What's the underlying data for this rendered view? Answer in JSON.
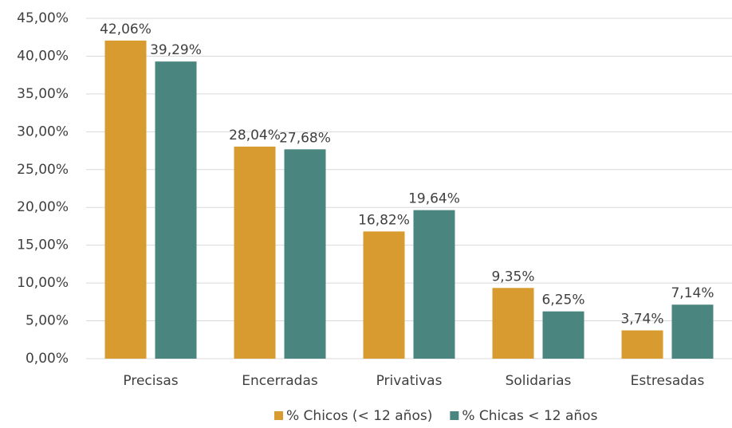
{
  "chart_data": {
    "type": "bar",
    "categories": [
      "Precisas",
      "Encerradas",
      "Privativas",
      "Solidarias",
      "Estresadas"
    ],
    "series": [
      {
        "name": "% Chicos (< 12 años)",
        "color": "#d89b2f",
        "values": [
          42.06,
          28.04,
          16.82,
          9.35,
          3.74
        ],
        "value_labels": [
          "42,06%",
          "28,04%",
          "16,82%",
          "9,35%",
          "3,74%"
        ]
      },
      {
        "name": "% Chicas < 12 años",
        "color": "#4b8580",
        "values": [
          39.29,
          27.68,
          19.64,
          6.25,
          7.14
        ],
        "value_labels": [
          "39,29%",
          "27,68%",
          "19,64%",
          "6,25%",
          "7,14%"
        ]
      }
    ],
    "ylim": [
      0,
      45
    ],
    "yticks": [
      {
        "value": 0,
        "label": "0,00%"
      },
      {
        "value": 5,
        "label": "5,00%"
      },
      {
        "value": 10,
        "label": "10,00%"
      },
      {
        "value": 15,
        "label": "15,00%"
      },
      {
        "value": 20,
        "label": "20,00%"
      },
      {
        "value": 25,
        "label": "25,00%"
      },
      {
        "value": 30,
        "label": "30,00%"
      },
      {
        "value": 35,
        "label": "35,00%"
      },
      {
        "value": 40,
        "label": "40,00%"
      },
      {
        "value": 45,
        "label": "45,00%"
      }
    ],
    "grid": true,
    "legend": "bottom"
  }
}
